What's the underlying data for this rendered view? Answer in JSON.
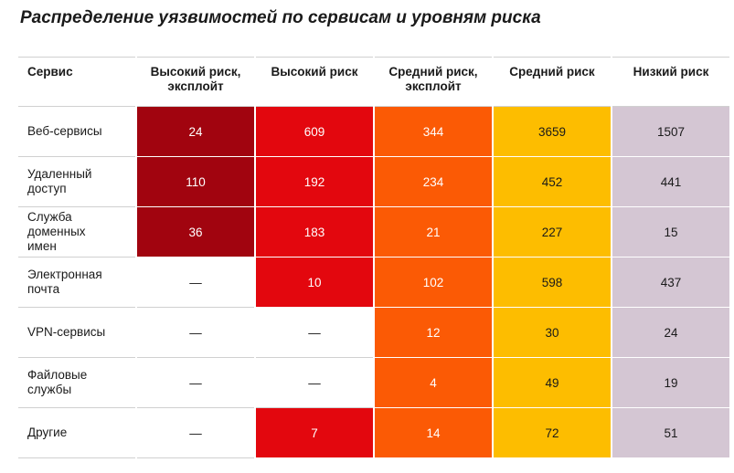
{
  "title": "Распределение уязвимостей по сервисам и уровням риска",
  "headers": [
    "Сервис",
    "Высокий риск, эксплойт",
    "Высокий риск",
    "Средний риск, эксплойт",
    "Средний риск",
    "Низкий риск"
  ],
  "header_lines": [
    [
      "Сервис"
    ],
    [
      "Высокий риск,",
      "эксплойт"
    ],
    [
      "Высокий риск"
    ],
    [
      "Средний риск,",
      "эксплойт"
    ],
    [
      "Средний риск"
    ],
    [
      "Низкий риск"
    ]
  ],
  "colors": {
    "high_exploit": "#a1040f",
    "high": "#e3070e",
    "medium_exploit": "#fb5a05",
    "medium": "#fdbd00",
    "low": "#d4c6d3"
  },
  "rows": [
    {
      "service_lines": [
        "Веб-сервисы"
      ],
      "values": [
        "24",
        "609",
        "344",
        "3659",
        "1507"
      ]
    },
    {
      "service_lines": [
        "Удаленный",
        "доступ"
      ],
      "values": [
        "110",
        "192",
        "234",
        "452",
        "441"
      ]
    },
    {
      "service_lines": [
        "Служба",
        "доменных",
        "имен"
      ],
      "values": [
        "36",
        "183",
        "21",
        "227",
        "15"
      ]
    },
    {
      "service_lines": [
        "Электронная",
        "почта"
      ],
      "values": [
        "—",
        "10",
        "102",
        "598",
        "437"
      ]
    },
    {
      "service_lines": [
        "VPN-сервисы"
      ],
      "values": [
        "—",
        "—",
        "12",
        "30",
        "24"
      ]
    },
    {
      "service_lines": [
        "Файловые",
        "службы"
      ],
      "values": [
        "—",
        "—",
        "4",
        "49",
        "19"
      ]
    },
    {
      "service_lines": [
        "Другие"
      ],
      "values": [
        "—",
        "7",
        "14",
        "72",
        "51"
      ]
    }
  ]
}
